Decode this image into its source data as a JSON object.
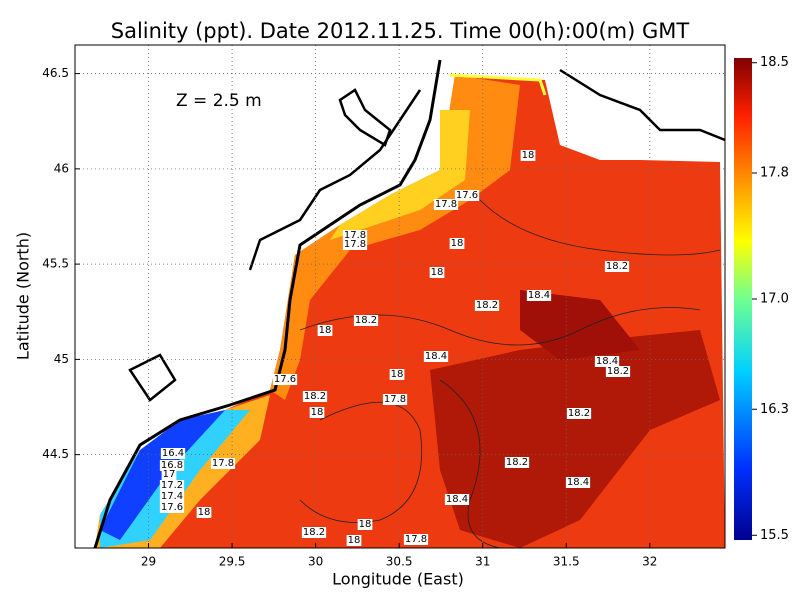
{
  "chart_data": {
    "type": "contour-map",
    "title": "Salinity (ppt). Date 2012.11.25. Time 00(h):00(m) GMT",
    "annotation": "Z = 2.5 m",
    "x_label": "Longitude (East)",
    "y_label": "Latitude (North)",
    "xlim": [
      28.56,
      32.45
    ],
    "xticks": [
      29,
      29.5,
      30,
      30.5,
      31,
      31.5,
      32
    ],
    "ylim": [
      44.01,
      46.65
    ],
    "yticks": [
      44.5,
      45,
      45.5,
      46,
      46.5
    ],
    "grid": true,
    "colorbar_lim": [
      15.47,
      18.53
    ],
    "colorbar_ticks": [
      15.5,
      16.3,
      {
        "value": 17,
        "label": "17.0"
      },
      17.8,
      18.5
    ],
    "contour_labels": [
      18,
      17.6,
      17.8,
      17.8,
      17.8,
      18,
      18,
      18.2,
      18.4,
      18.2,
      18,
      18.2,
      18.4,
      18.4,
      18.2,
      17.6,
      18,
      18.2,
      18,
      17.8,
      18.2,
      18.2,
      18.4,
      18.4,
      17.8,
      18,
      16.4,
      16.8,
      17,
      17.2,
      17.4,
      17.6,
      18.2,
      18,
      18,
      17.8
    ]
  }
}
